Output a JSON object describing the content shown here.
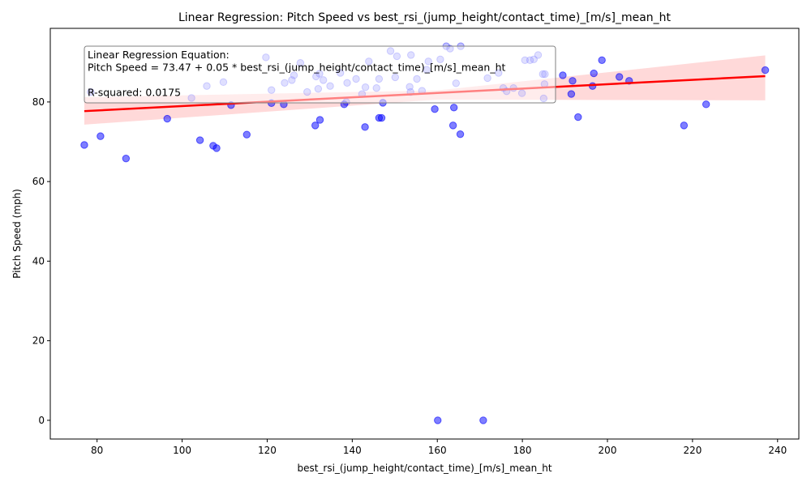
{
  "chart_data": {
    "type": "scatter",
    "title": "Linear Regression: Pitch Speed vs best_rsi_(jump_height/contact_time)_[m/s]_mean_ht",
    "xlabel": "best_rsi_(jump_height/contact_time)_[m/s]_mean_ht",
    "ylabel": "Pitch Speed (mph)",
    "xlim": [
      69,
      245
    ],
    "ylim": [
      -4.7,
      98.5
    ],
    "x_ticks": [
      80,
      100,
      120,
      140,
      160,
      180,
      200,
      220,
      240
    ],
    "y_ticks": [
      0,
      20,
      40,
      60,
      80
    ],
    "grid": false,
    "annotation": {
      "lines": [
        "Linear Regression Equation:",
        "Pitch Speed = 73.47 + 0.05 * best_rsi_(jump_height/contact_time)_[m/s]_mean_ht",
        "",
        "R-squared: 0.0175"
      ]
    },
    "series": [
      {
        "kind": "scatter",
        "color": "#0000ff",
        "points": [
          [
            77,
            69.2
          ],
          [
            80.8,
            71.4
          ],
          [
            86.8,
            65.8
          ],
          [
            96.5,
            75.8
          ],
          [
            104.2,
            70.4
          ],
          [
            107.3,
            69
          ],
          [
            108.1,
            68.4
          ],
          [
            111.5,
            79.2
          ],
          [
            115.2,
            71.8
          ],
          [
            121,
            79.7
          ],
          [
            123.9,
            79.4
          ],
          [
            131.3,
            74.1
          ],
          [
            132.4,
            75.5
          ],
          [
            138.1,
            79.4
          ],
          [
            143,
            73.7
          ],
          [
            146.3,
            76
          ],
          [
            146.9,
            76
          ],
          [
            147.2,
            79.8
          ],
          [
            159.4,
            78.2
          ],
          [
            160.1,
            0
          ],
          [
            163.7,
            74.1
          ],
          [
            163.9,
            78.6
          ],
          [
            165.4,
            71.9
          ],
          [
            170.8,
            0
          ],
          [
            189.5,
            86.7
          ],
          [
            191.5,
            82
          ],
          [
            191.8,
            85.3
          ],
          [
            193.1,
            76.2
          ],
          [
            196.5,
            84
          ],
          [
            196.8,
            87.2
          ],
          [
            198.7,
            90.5
          ],
          [
            202.8,
            86.3
          ],
          [
            205.1,
            85.3
          ],
          [
            218,
            74.1
          ],
          [
            223.2,
            79.4
          ],
          [
            237.1,
            88
          ]
        ]
      },
      {
        "kind": "scatter",
        "color": "#0000ff",
        "note": "",
        "points": [
          [
            78.5,
            82.5
          ],
          [
            102.2,
            81
          ],
          [
            105.8,
            84
          ],
          [
            109.7,
            85
          ],
          [
            119.7,
            91.2
          ],
          [
            121,
            83
          ],
          [
            124.1,
            84.8
          ],
          [
            125.8,
            85.5
          ],
          [
            126.3,
            86.7
          ],
          [
            127.8,
            89.8
          ],
          [
            129.4,
            82.5
          ],
          [
            131.5,
            86.4
          ],
          [
            132,
            83.3
          ],
          [
            132.3,
            87.1
          ],
          [
            133.2,
            85.5
          ],
          [
            134.8,
            84
          ],
          [
            137.2,
            87.3
          ],
          [
            138.6,
            80
          ],
          [
            138.8,
            84.8
          ],
          [
            140.9,
            85.8
          ],
          [
            142.3,
            82
          ],
          [
            143.1,
            83.7
          ],
          [
            143.9,
            90.2
          ],
          [
            145.7,
            83.5
          ],
          [
            146.3,
            85.8
          ],
          [
            149,
            92.8
          ],
          [
            150.1,
            86.2
          ],
          [
            150.5,
            91.5
          ],
          [
            153.5,
            83.8
          ],
          [
            153.7,
            82.5
          ],
          [
            153.8,
            91.8
          ],
          [
            155.2,
            85.8
          ],
          [
            156.4,
            82.8
          ],
          [
            157.5,
            88.1
          ],
          [
            157.9,
            90.2
          ],
          [
            160.7,
            90.7
          ],
          [
            162.1,
            94
          ],
          [
            163,
            93.4
          ],
          [
            164.4,
            84.7
          ],
          [
            165.5,
            94
          ],
          [
            171.8,
            86
          ],
          [
            174.4,
            87.3
          ],
          [
            175.5,
            83.5
          ],
          [
            176.3,
            82.7
          ],
          [
            177.9,
            83.5
          ],
          [
            179.9,
            82.2
          ],
          [
            180.6,
            90.5
          ],
          [
            181.8,
            90.5
          ],
          [
            182.7,
            90.7
          ],
          [
            183.7,
            91.8
          ],
          [
            184.8,
            87
          ],
          [
            185,
            80.9
          ],
          [
            185.2,
            84.5
          ],
          [
            185.3,
            87
          ]
        ]
      },
      {
        "kind": "regression_line",
        "color": "#ff0000",
        "points": [
          [
            77,
            77.7
          ],
          [
            237.1,
            86.5
          ]
        ],
        "ci_upper": [
          [
            77,
            81.2
          ],
          [
            160,
            82.9
          ],
          [
            237.1,
            91.7
          ]
        ],
        "ci_lower": [
          [
            77,
            74.3
          ],
          [
            160,
            80.6
          ],
          [
            237.1,
            80.4
          ]
        ],
        "band_color": "#ff0000"
      }
    ]
  }
}
